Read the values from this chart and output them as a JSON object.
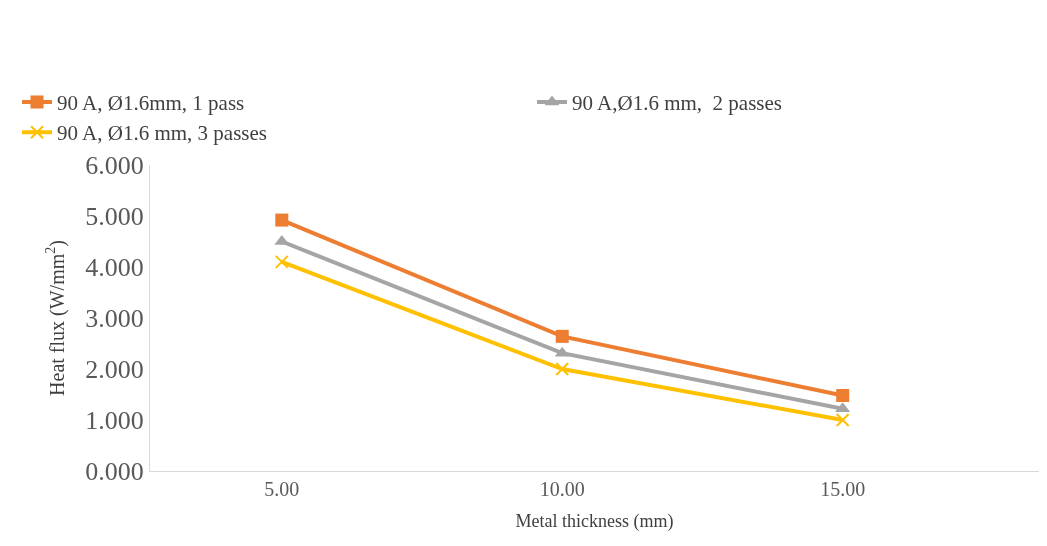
{
  "chart_data": {
    "type": "line",
    "xlabel": "Metal thickness (mm)",
    "ylabel": "Heat flux (W/mm$^{2}$)",
    "categories": [
      "5.00",
      "10.00",
      "15.00"
    ],
    "series": [
      {
        "name": "90 A, Ø1.6mm, 1 pass",
        "color": "#ed7d31",
        "marker": "square",
        "values": [
          4.92,
          2.64,
          1.48
        ]
      },
      {
        "name": "90 A,Ø1.6 mm,  2 passes",
        "color": "#a5a5a5",
        "marker": "triangle",
        "values": [
          4.5,
          2.31,
          1.22
        ]
      },
      {
        "name": "90 A, Ø1.6 mm, 3 passes",
        "color": "#ffc000",
        "marker": "cross",
        "values": [
          4.1,
          2.0,
          1.0
        ]
      }
    ],
    "ylim": [
      0,
      6
    ],
    "yticks": [
      {
        "value": 0,
        "label": "0.000"
      },
      {
        "value": 1,
        "label": "1.000"
      },
      {
        "value": 2,
        "label": "2.000"
      },
      {
        "value": 3,
        "label": "3.000"
      },
      {
        "value": 4,
        "label": "4.000"
      },
      {
        "value": 5,
        "label": "5.000"
      },
      {
        "value": 6,
        "label": "6.000"
      }
    ],
    "legend": "top"
  }
}
